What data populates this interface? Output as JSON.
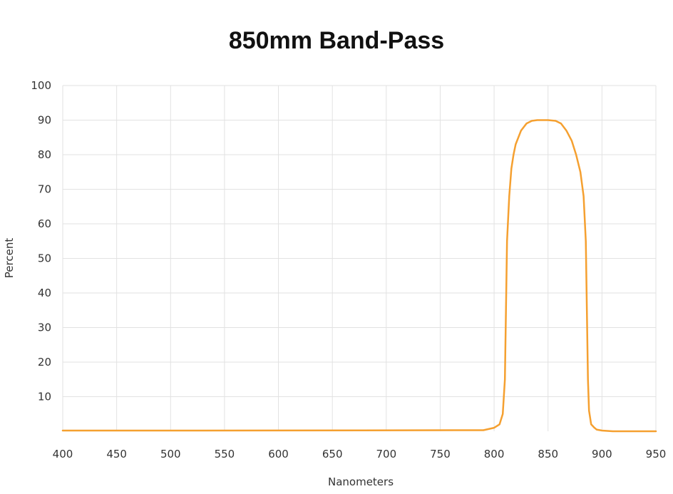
{
  "chart_data": {
    "type": "line",
    "title": "850mm Band-Pass",
    "xlabel": "Nanometers",
    "ylabel": "Percent",
    "xlim": [
      400,
      950
    ],
    "ylim": [
      0,
      100
    ],
    "x_ticks": [
      400,
      450,
      500,
      550,
      600,
      650,
      700,
      750,
      800,
      850,
      900,
      950
    ],
    "y_ticks": [
      10,
      20,
      30,
      40,
      50,
      60,
      70,
      80,
      90,
      100
    ],
    "grid": true,
    "line_color": "#F5A030",
    "series": [
      {
        "x": [
          400,
          525,
          790,
          800,
          805,
          808,
          810,
          811,
          812,
          814,
          816,
          818,
          820,
          825,
          830,
          835,
          840,
          850,
          857,
          862,
          867,
          872,
          876,
          880,
          883,
          885,
          886,
          887,
          888,
          890,
          893,
          895,
          900,
          905,
          910,
          950
        ],
        "y": [
          0.2,
          0.2,
          0.3,
          1,
          2,
          5,
          15,
          35,
          55,
          68,
          76,
          80,
          83,
          87,
          89,
          89.8,
          90,
          90,
          89.8,
          89,
          87,
          84,
          80,
          75,
          68,
          55,
          35,
          15,
          6,
          2,
          1,
          0.5,
          0.2,
          0.1,
          0,
          0
        ]
      }
    ]
  }
}
